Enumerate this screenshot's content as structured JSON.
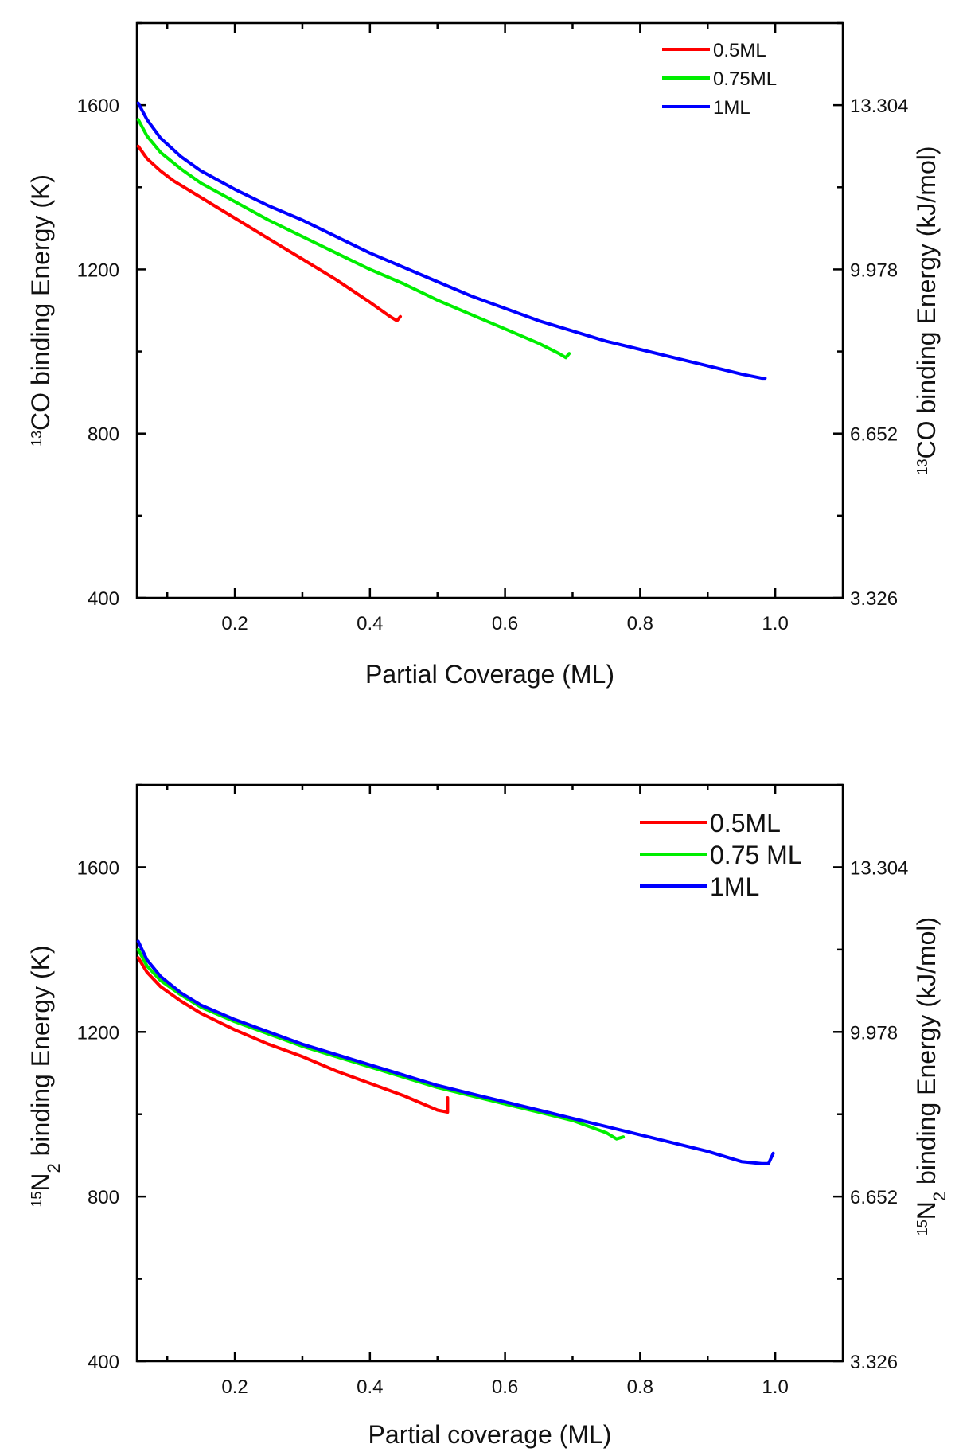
{
  "chart_data": [
    {
      "type": "line",
      "id": "top",
      "xlabel": "Partial Coverage (ML)",
      "ylabel_sup": "13",
      "ylabel_main": "CO binding Energy (K)",
      "y2label_sup": "13",
      "y2label_main": "CO binding Energy (kJ/mol)",
      "xlim": [
        0.055,
        1.1
      ],
      "ylim": [
        400,
        1800
      ],
      "xticks": [
        0.2,
        0.4,
        0.6,
        0.8,
        1.0
      ],
      "xtick_labels": [
        "0.2",
        "0.4",
        "0.6",
        "0.8",
        "1.0"
      ],
      "yticks": [
        400,
        800,
        1200,
        1600
      ],
      "ytick_labels": [
        "400",
        "800",
        "1200",
        "1600"
      ],
      "y2tick_labels": [
        "3.326",
        "6.652",
        "9.978",
        "13.304"
      ],
      "legend_position": "top-right",
      "series": [
        {
          "name": "0.5ML",
          "color": "#ff0000",
          "x": [
            0.057,
            0.07,
            0.09,
            0.11,
            0.14,
            0.17,
            0.2,
            0.25,
            0.3,
            0.35,
            0.4,
            0.43,
            0.44,
            0.445
          ],
          "y": [
            1500,
            1470,
            1440,
            1415,
            1385,
            1355,
            1325,
            1275,
            1225,
            1175,
            1120,
            1085,
            1075,
            1085
          ]
        },
        {
          "name": "0.75ML",
          "color": "#00ee00",
          "x": [
            0.057,
            0.07,
            0.09,
            0.12,
            0.15,
            0.2,
            0.25,
            0.3,
            0.35,
            0.4,
            0.45,
            0.5,
            0.55,
            0.6,
            0.65,
            0.68,
            0.69,
            0.695
          ],
          "y": [
            1565,
            1525,
            1485,
            1445,
            1410,
            1365,
            1320,
            1280,
            1240,
            1200,
            1165,
            1125,
            1090,
            1055,
            1020,
            995,
            985,
            995
          ]
        },
        {
          "name": "1ML",
          "color": "#0000ff",
          "x": [
            0.057,
            0.07,
            0.09,
            0.12,
            0.15,
            0.2,
            0.25,
            0.3,
            0.35,
            0.4,
            0.45,
            0.5,
            0.55,
            0.6,
            0.65,
            0.7,
            0.75,
            0.8,
            0.85,
            0.9,
            0.95,
            0.98,
            0.985
          ],
          "y": [
            1605,
            1565,
            1520,
            1475,
            1440,
            1395,
            1355,
            1320,
            1280,
            1240,
            1205,
            1170,
            1135,
            1105,
            1075,
            1050,
            1025,
            1005,
            985,
            965,
            945,
            935,
            935
          ]
        }
      ]
    },
    {
      "type": "line",
      "id": "bottom",
      "xlabel": "Partial coverage (ML)",
      "ylabel_sup": "15",
      "ylabel_main": "N",
      "ylabel_sub": "2",
      "ylabel_rest": " binding Energy (K)",
      "y2label_sup": "15",
      "y2label_main": "N",
      "y2label_sub": "2",
      "y2label_rest": " binding Energy (kJ/mol)",
      "xlim": [
        0.055,
        1.1
      ],
      "ylim": [
        400,
        1800
      ],
      "xticks": [
        0.2,
        0.4,
        0.6,
        0.8,
        1.0
      ],
      "xtick_labels": [
        "0.2",
        "0.4",
        "0.6",
        "0.8",
        "1.0"
      ],
      "yticks": [
        400,
        800,
        1200,
        1600
      ],
      "ytick_labels": [
        "400",
        "800",
        "1200",
        "1600"
      ],
      "y2tick_labels": [
        "3.326",
        "6.652",
        "9.978",
        "13.304"
      ],
      "legend_position": "top-right",
      "series": [
        {
          "name": "0.5ML",
          "color": "#ff0000",
          "x": [
            0.057,
            0.07,
            0.09,
            0.12,
            0.15,
            0.2,
            0.25,
            0.3,
            0.35,
            0.4,
            0.45,
            0.5,
            0.515,
            0.515
          ],
          "y": [
            1380,
            1345,
            1310,
            1275,
            1245,
            1205,
            1170,
            1140,
            1105,
            1075,
            1045,
            1010,
            1005,
            1040
          ]
        },
        {
          "name": "0.75 ML",
          "color": "#00ee00",
          "x": [
            0.057,
            0.07,
            0.09,
            0.12,
            0.15,
            0.2,
            0.25,
            0.3,
            0.35,
            0.4,
            0.45,
            0.5,
            0.55,
            0.6,
            0.65,
            0.7,
            0.75,
            0.765,
            0.775
          ],
          "y": [
            1400,
            1360,
            1325,
            1290,
            1260,
            1225,
            1195,
            1165,
            1140,
            1115,
            1090,
            1065,
            1045,
            1025,
            1005,
            985,
            955,
            940,
            945
          ]
        },
        {
          "name": "1ML",
          "color": "#0000ff",
          "x": [
            0.057,
            0.07,
            0.09,
            0.12,
            0.15,
            0.2,
            0.25,
            0.3,
            0.35,
            0.4,
            0.45,
            0.5,
            0.55,
            0.6,
            0.65,
            0.7,
            0.75,
            0.8,
            0.85,
            0.9,
            0.95,
            0.98,
            0.99,
            0.997
          ],
          "y": [
            1420,
            1375,
            1335,
            1295,
            1265,
            1230,
            1200,
            1170,
            1145,
            1120,
            1095,
            1070,
            1050,
            1030,
            1010,
            990,
            970,
            950,
            930,
            910,
            885,
            880,
            880,
            905
          ]
        }
      ]
    }
  ]
}
